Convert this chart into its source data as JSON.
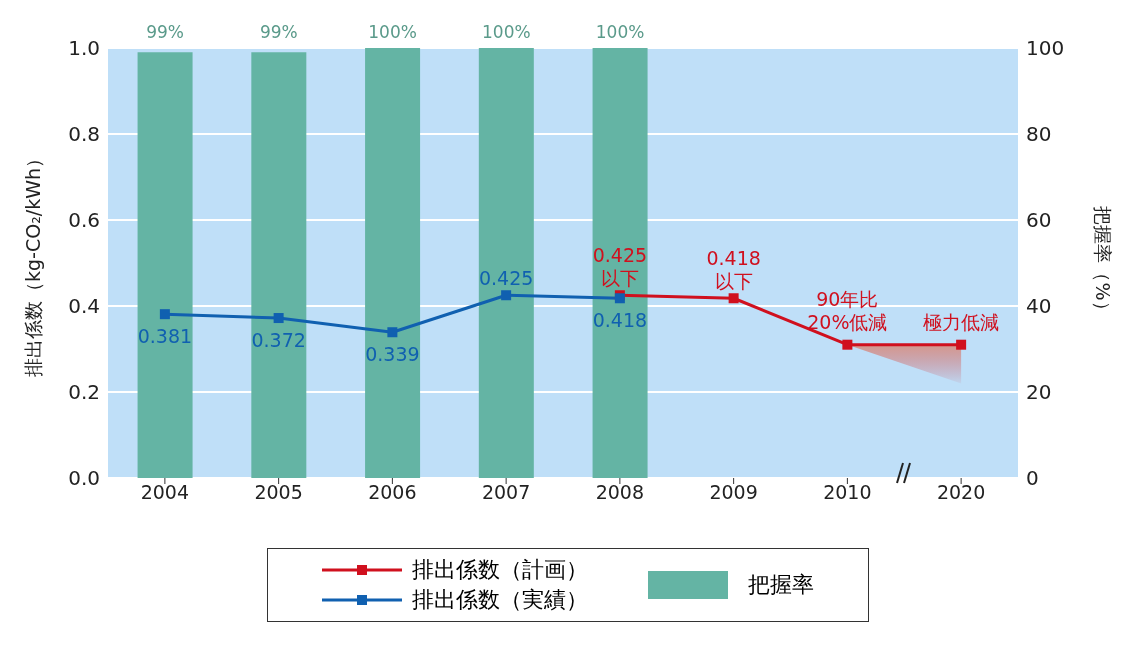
{
  "chart_data": {
    "type": "line",
    "categories": [
      "2004",
      "2005",
      "2006",
      "2007",
      "2008",
      "2009",
      "2010",
      "2020"
    ],
    "ylabel": "排出係数（kg-CO₂/kWh）",
    "y2label": "把握率（%）",
    "ylim": [
      0,
      1
    ],
    "yticks": [
      {
        "value": 0,
        "label": "0.0"
      },
      {
        "value": 0.2,
        "label": "0.2"
      },
      {
        "value": 0.4,
        "label": "0.4"
      },
      {
        "value": 0.6,
        "label": "0.6"
      },
      {
        "value": 0.8,
        "label": "0.8"
      },
      {
        "value": 1,
        "label": "1.0"
      }
    ],
    "y2lim": [
      0,
      100
    ],
    "y2ticks": [
      0,
      20,
      40,
      60,
      80,
      100
    ],
    "series": [
      {
        "name": "排出係数（計画）",
        "color": "#d0101e",
        "values": [
          null,
          null,
          null,
          null,
          0.425,
          0.418,
          0.31,
          0.31
        ],
        "lower": [
          null,
          null,
          null,
          null,
          null,
          null,
          0.31,
          0.22
        ],
        "upper": [
          null,
          null,
          null,
          null,
          null,
          null,
          0.31,
          0.31
        ],
        "value_labels": [
          null,
          null,
          null,
          null,
          "0.425\n以下",
          "0.418\n以下",
          null,
          null
        ]
      },
      {
        "name": "排出係数（実績）",
        "color": "#1060b0",
        "values": [
          0.381,
          0.372,
          0.339,
          0.425,
          0.418,
          null,
          null,
          null
        ],
        "value_labels": [
          "0.381",
          "0.372",
          "0.339",
          "0.425",
          "0.418",
          null,
          null,
          null
        ]
      },
      {
        "name": "把握率",
        "type": "bar",
        "axis": "y2",
        "color": "#64b4a4",
        "values": [
          99,
          99,
          100,
          100,
          100,
          null,
          null,
          null
        ],
        "value_labels": [
          "99%",
          "99%",
          "100%",
          "100%",
          "100%",
          null,
          null,
          null
        ]
      }
    ],
    "annotations": [
      {
        "text": "90年比\n20%低減",
        "x": "2010",
        "y": 0.31
      },
      {
        "text": "極力低減",
        "x": "2020",
        "y": 0.31
      }
    ],
    "grid": "y",
    "legend": "bottom",
    "marker": "square",
    "line_style": "solid"
  }
}
